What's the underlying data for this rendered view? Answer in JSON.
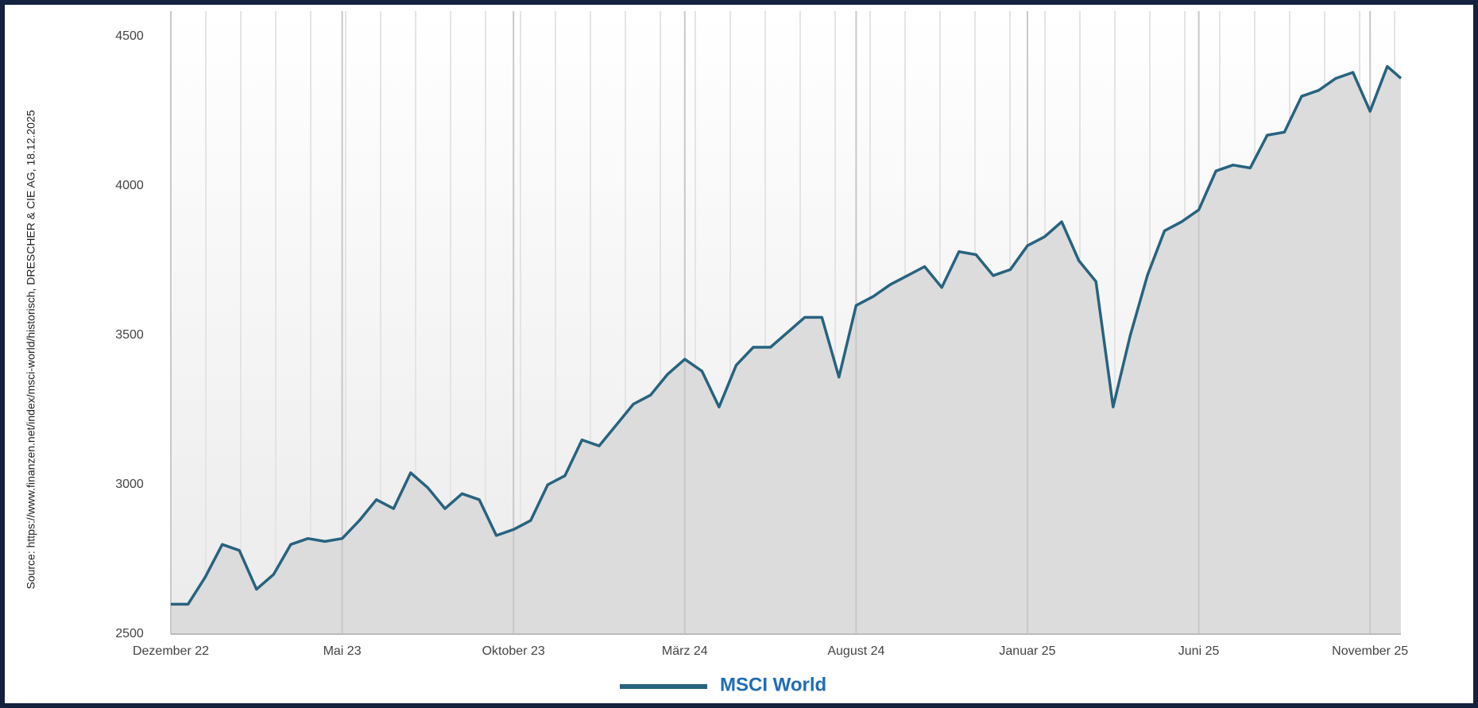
{
  "chart_data": {
    "type": "line",
    "source": "Source: https://www.finanzen.net/index/msci-world/historisch, DRESCHER & CIE AG, 18.12.2025",
    "x": [
      0,
      0.5,
      1,
      1.5,
      2,
      2.5,
      3,
      3.5,
      4,
      4.5,
      5,
      5.5,
      6,
      6.5,
      7,
      7.5,
      8,
      8.5,
      9,
      9.5,
      10,
      10.5,
      11,
      11.5,
      12,
      12.5,
      13,
      13.5,
      14,
      14.5,
      15,
      15.5,
      16,
      16.5,
      17,
      17.5,
      18,
      18.5,
      19,
      19.5,
      20,
      20.5,
      21,
      21.5,
      22,
      22.5,
      23,
      23.5,
      24,
      24.5,
      25,
      25.5,
      26,
      26.5,
      27,
      27.5,
      28,
      28.5,
      29,
      29.5,
      30,
      30.5,
      31,
      31.5,
      32,
      32.5,
      33,
      33.5,
      34,
      34.5,
      35,
      35.5,
      35.9
    ],
    "series": [
      {
        "name": "MSCI World",
        "color": "#27637f",
        "values": [
          2600,
          2600,
          2690,
          2800,
          2780,
          2650,
          2700,
          2800,
          2820,
          2810,
          2820,
          2880,
          2950,
          2920,
          3040,
          2990,
          2920,
          2970,
          2950,
          2830,
          2850,
          2880,
          3000,
          3030,
          3150,
          3130,
          3200,
          3270,
          3300,
          3370,
          3420,
          3380,
          3260,
          3400,
          3460,
          3460,
          3510,
          3560,
          3560,
          3360,
          3600,
          3630,
          3670,
          3700,
          3730,
          3660,
          3780,
          3770,
          3700,
          3720,
          3800,
          3830,
          3880,
          3750,
          3680,
          3260,
          3500,
          3700,
          3850,
          3880,
          3920,
          4050,
          4070,
          4060,
          4170,
          4180,
          4300,
          4320,
          4360,
          4380,
          4250,
          4400,
          4360
        ]
      }
    ],
    "xlim": [
      0,
      35.9
    ],
    "xticks": [
      {
        "value": 0,
        "label": "Dezember 22"
      },
      {
        "value": 5,
        "label": "Mai 23"
      },
      {
        "value": 10,
        "label": "Oktober 23"
      },
      {
        "value": 15,
        "label": "März 24"
      },
      {
        "value": 20,
        "label": "August 24"
      },
      {
        "value": 25,
        "label": "Januar 25"
      },
      {
        "value": 30,
        "label": "Juni 25"
      },
      {
        "value": 35,
        "label": "November 25"
      }
    ],
    "ylim": [
      2500,
      4500
    ],
    "yticks": [
      2500,
      3000,
      3500,
      4000,
      4500
    ],
    "grid": true
  }
}
